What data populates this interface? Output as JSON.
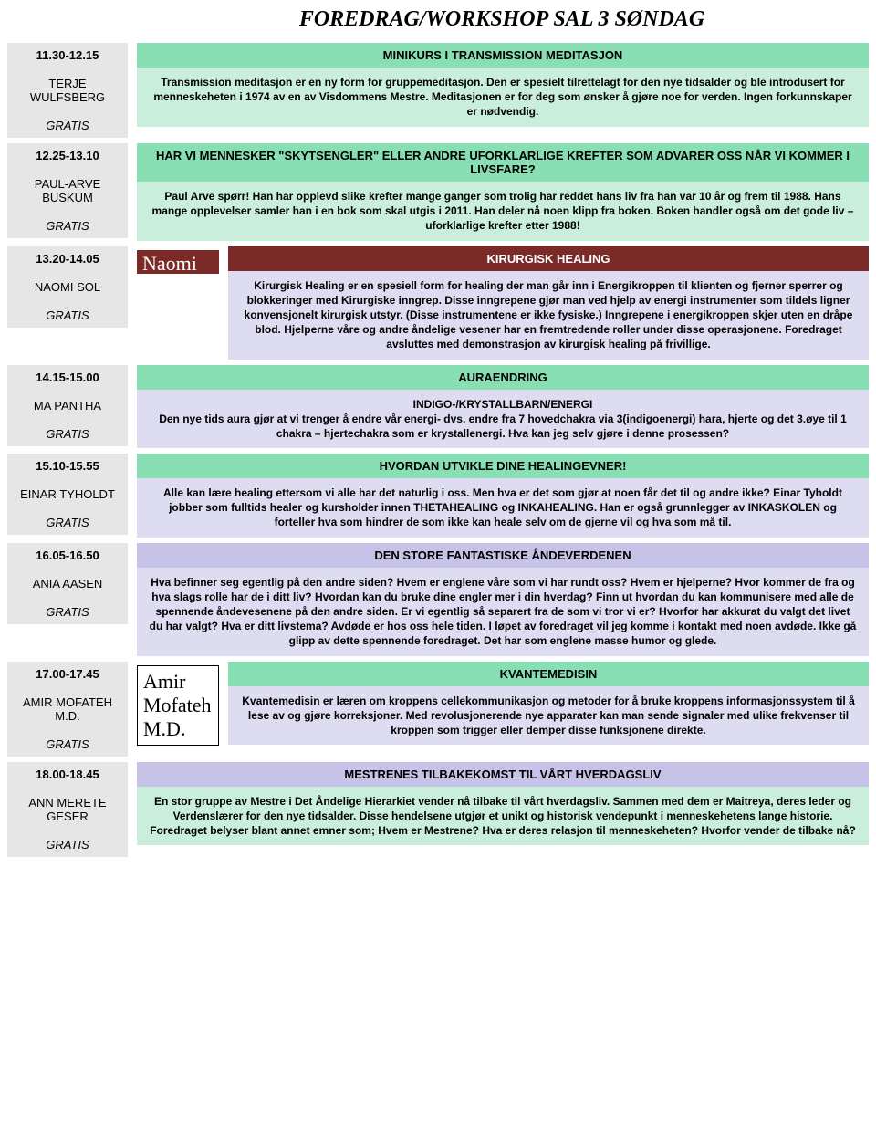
{
  "page_title": "FOREDRAG/WORKSHOP SAL 3 SØNDAG",
  "colors": {
    "green_title": "#88dfb4",
    "green_body": "#c9efdc",
    "purple_title": "#c7c3e8",
    "purple_body": "#dedcf1",
    "brown_title": "#7a2b27",
    "left_bg": "#e6e6e6"
  },
  "sessions": [
    {
      "time": "11.30-12.15",
      "speaker": "TERJE WULFSBERG",
      "price": "GRATIS",
      "title": "MINIKURS I TRANSMISSION MEDITASJON",
      "body": "Transmission meditasjon er en ny form for gruppemeditasjon. Den er spesielt tilrettelagt for den nye tidsalder og ble introdusert for menneskeheten i 1974 av en av Visdommens Mestre. Meditasjonen er for deg som ønsker å gjøre noe for verden. Ingen forkunnskaper er nødvendig.",
      "title_class": "bg-green-title",
      "body_class": "bg-green-body"
    },
    {
      "time": "12.25-13.10",
      "speaker": "PAUL-ARVE BUSKUM",
      "price": "GRATIS",
      "title": "HAR VI MENNESKER \"SKYTSENGLER\" ELLER ANDRE UFORKLARLIGE KREFTER SOM ADVARER OSS NÅR VI KOMMER I LIVSFARE?",
      "body": "Paul Arve spørr! Han har opplevd slike krefter mange ganger som trolig har reddet hans liv fra han var 10 år og frem til 1988. Hans mange opplevelser samler han i en bok som skal utgis i 2011. Han deler nå noen klipp fra boken. Boken handler også om det gode liv – uforklarlige krefter etter 1988!",
      "title_class": "bg-green-title",
      "body_class": "bg-green-body"
    },
    {
      "time": "13.20-14.05",
      "speaker": "NAOMI SOL",
      "price": "GRATIS",
      "aux": "Naomi",
      "aux_style": "white_on_brown",
      "title": "KIRURGISK HEALING",
      "body": "Kirurgisk Healing er en spesiell form for healing der man går inn i Energikroppen til klienten og fjerner sperrer og blokkeringer med Kirurgiske inngrep. Disse inngrepene gjør man ved hjelp av energi instrumenter som tildels ligner konvensjonelt kirurgisk utstyr. (Disse instrumentene er ikke fysiske.) Inngrepene i energikroppen skjer uten en dråpe blod. Hjelperne våre og andre åndelige vesener har en fremtredende roller under disse operasjonene. Foredraget avsluttes med demonstrasjon av kirurgisk healing på frivillige.",
      "title_class": "bg-brown-title",
      "body_class": "bg-purple-body"
    },
    {
      "time": "14.15-15.00",
      "speaker": "MA PANTHA",
      "price": "GRATIS",
      "title": "AURAENDRING",
      "body": "INDIGO-/KRYSTALLBARN/ENERGI\nDen nye tids aura gjør at vi trenger å endre vår energi- dvs. endre fra 7 hovedchakra via 3(indigoenergi) hara, hjerte og det 3.øye til 1 chakra – hjertechakra som er krystallenergi. Hva kan jeg selv gjøre i denne prosessen?",
      "title_class": "bg-green-title",
      "body_class": "bg-purple-body"
    },
    {
      "time": "15.10-15.55",
      "speaker": "EINAR TYHOLDT",
      "price": "GRATIS",
      "title": "HVORDAN UTVIKLE DINE HEALINGEVNER!",
      "body": "Alle kan lære healing ettersom vi alle har det naturlig i oss. Men hva er det som gjør at noen får det til og andre ikke? Einar Tyholdt jobber som fulltids healer og kursholder innen THETAHEALING og INKAHEALING. Han er også grunnlegger av INKASKOLEN og forteller hva som hindrer de som ikke kan heale selv om de gjerne vil og hva som må til.",
      "title_class": "bg-green-title",
      "body_class": "bg-purple-body"
    },
    {
      "time": "16.05-16.50",
      "speaker": "ANIA AASEN",
      "price": "GRATIS",
      "title": "DEN STORE FANTASTISKE ÅNDEVERDENEN",
      "body": "Hva befinner seg egentlig på den andre siden? Hvem er englene våre som vi har rundt oss? Hvem er hjelperne? Hvor kommer de fra og hva slags rolle har de i ditt liv? Hvordan kan du bruke dine engler mer i din hverdag?  Finn ut hvordan du kan kommunisere med alle de spennende åndevesenene på den andre siden. Er vi egentlig så separert fra de som vi tror vi er? Hvorfor har akkurat du valgt det livet du har valgt? Hva er ditt livstema? Avdøde er hos oss hele tiden. I løpet av foredraget vil jeg komme i kontakt med noen avdøde. Ikke gå glipp av dette spennende foredraget. Det har som englene masse humor og glede.",
      "title_class": "bg-purple-title",
      "body_class": "bg-purple-body"
    },
    {
      "time": "17.00-17.45",
      "speaker": "AMIR MOFATEH M.D.",
      "price": "GRATIS",
      "aux": "Amir Mofateh M.D.",
      "aux_style": "boxed",
      "title": "KVANTEMEDISIN",
      "body": "Kvantemedisin er læren om kroppens cellekommunikasjon og metoder for å bruke kroppens informasjonssystem til å lese av og gjøre korreksjoner. Med revolusjonerende nye apparater kan man sende signaler med ulike frekvenser til kroppen som trigger eller demper disse funksjonene direkte.",
      "title_class": "bg-green-title",
      "body_class": "bg-purple-body"
    },
    {
      "time": "18.00-18.45",
      "speaker": "ANN MERETE GESER",
      "price": "GRATIS",
      "title": "MESTRENES TILBAKEKOMST TIL VÅRT HVERDAGSLIV",
      "body": "En stor gruppe av Mestre i Det Åndelige Hierarkiet vender nå tilbake til vårt hverdagsliv. Sammen med dem er Maitreya, deres leder og Verdenslærer for den nye tidsalder. Disse hendelsene utgjør et unikt og historisk vendepunkt i menneskehetens lange historie. Foredraget belyser blant annet emner som; Hvem er Mestrene? Hva er deres relasjon til menneskeheten? Hvorfor vender de tilbake nå?",
      "title_class": "bg-purple-title",
      "body_class": "bg-green-body"
    }
  ]
}
